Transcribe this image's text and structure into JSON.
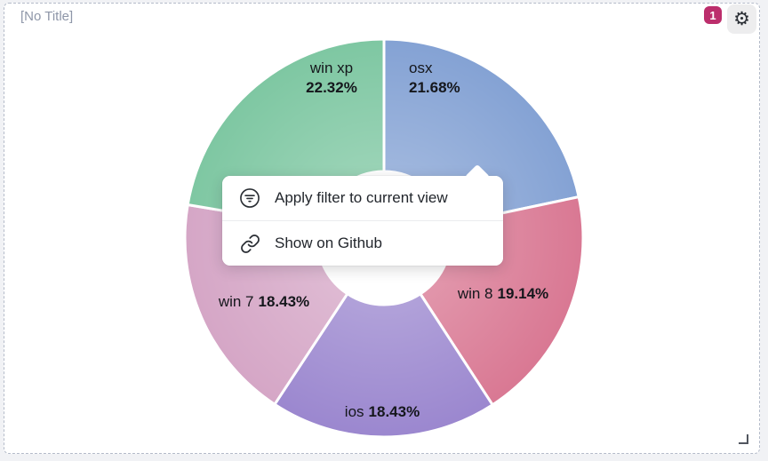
{
  "widget": {
    "title": "[No Title]",
    "badge_count": "1",
    "colors": {
      "badge_bg": "#bc2e6c"
    },
    "icons": {
      "gear": "⚙"
    }
  },
  "menu": {
    "items": [
      {
        "icon": "filter-circle-icon",
        "label": "Apply filter to current view"
      },
      {
        "icon": "link-icon",
        "label": "Show on Github"
      }
    ]
  },
  "chart_data": {
    "type": "pie",
    "subtype": "donut",
    "title": "",
    "legend": "none",
    "labels_position": "inside",
    "start": "top",
    "direction": "clockwise",
    "inner_radius_ratio": 0.33,
    "slice_border_color": "#ffffff",
    "series": [
      {
        "name": "osx",
        "value": 21.68,
        "pct": "21.68%",
        "color": "#84a2d4"
      },
      {
        "name": "win 8",
        "value": 19.14,
        "pct": "19.14%",
        "color": "#d97893"
      },
      {
        "name": "ios",
        "value": 18.43,
        "pct": "18.43%",
        "color": "#9b87cf"
      },
      {
        "name": "win 7",
        "value": 18.43,
        "pct": "18.43%",
        "color": "#d5a6c6"
      },
      {
        "name": "win xp",
        "value": 22.32,
        "pct": "22.32%",
        "color": "#7ec7a2"
      }
    ]
  }
}
